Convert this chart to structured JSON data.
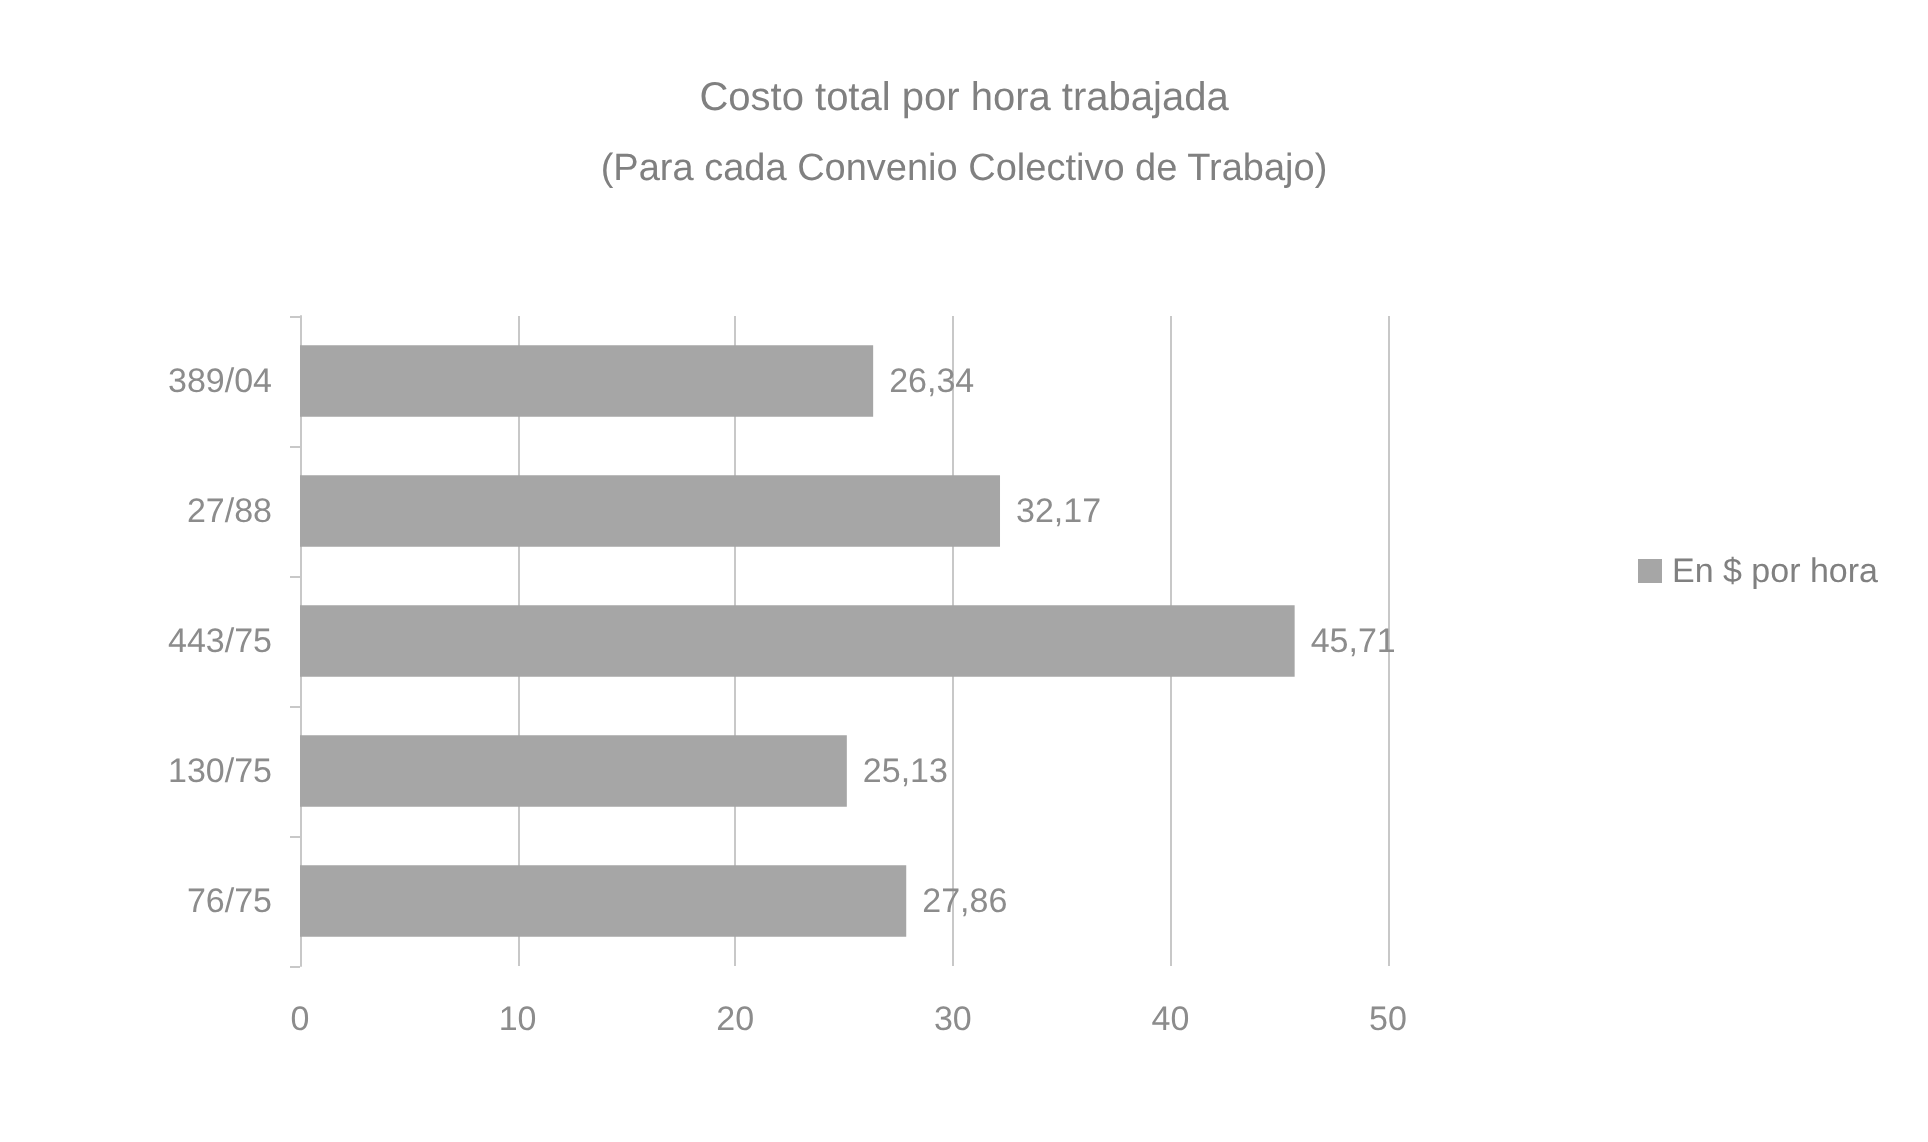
{
  "chart_data": {
    "type": "bar",
    "orientation": "horizontal",
    "title": "Costo total por hora trabajada",
    "subtitle": "(Para cada Convenio Colectivo de Trabajo)",
    "categories": [
      "389/04",
      "27/88",
      "443/75",
      "130/75",
      "76/75"
    ],
    "series": [
      {
        "name": "En $ por hora",
        "color": "#a6a6a6",
        "values": [
          26.34,
          32.17,
          45.71,
          25.13,
          27.86
        ],
        "value_labels": [
          "26,34",
          "32,17",
          "45,71",
          "25,13",
          "27,86"
        ]
      }
    ],
    "xlim": [
      0,
      50
    ],
    "xticks": [
      0,
      10,
      20,
      30,
      40,
      50
    ],
    "grid": "x",
    "legend": "right"
  }
}
